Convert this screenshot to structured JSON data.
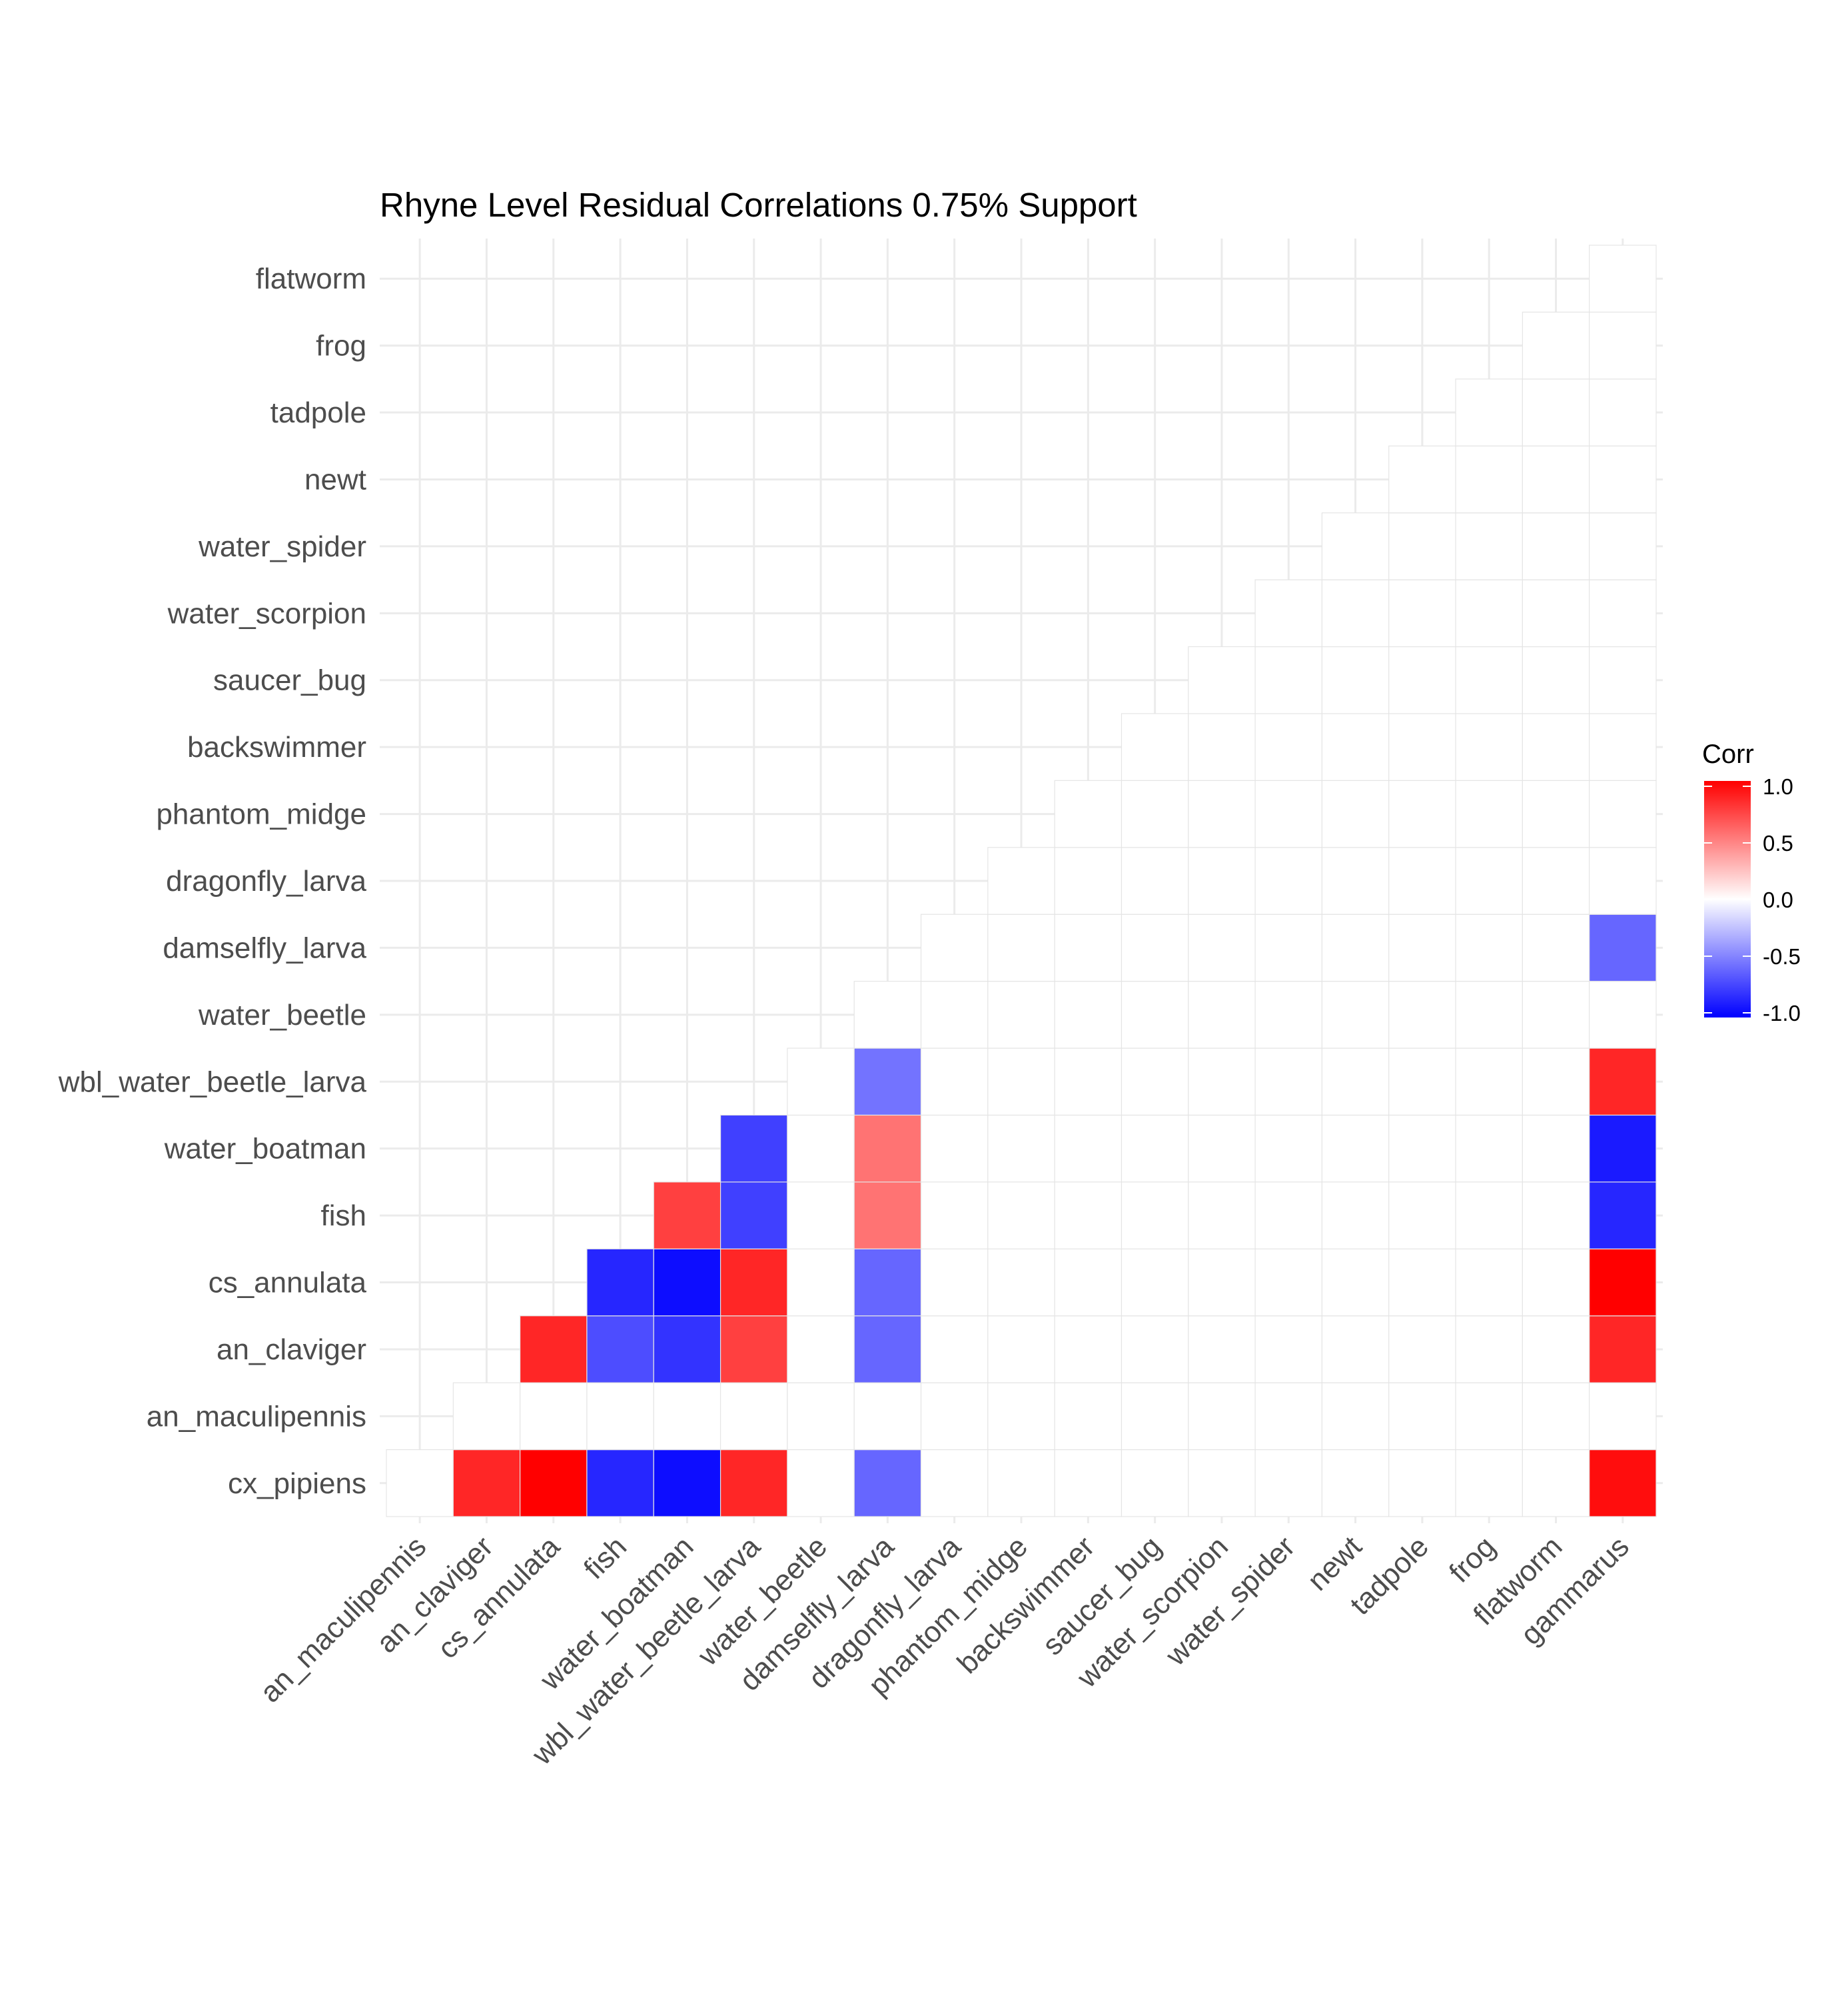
{
  "chart_data": {
    "type": "heatmap",
    "title": "Rhyne Level Residual Correlations 0.75% Support",
    "xlabel": "",
    "ylabel": "",
    "variables": [
      "an_maculipennis",
      "an_claviger",
      "cs_annulata",
      "fish",
      "water_boatman",
      "wbl_water_beetle_larva",
      "water_beetle",
      "damselfly_larva",
      "dragonfly_larva",
      "phantom_midge",
      "backswimmer",
      "saucer_bug",
      "water_scorpion",
      "water_spider",
      "newt",
      "tadpole",
      "frog",
      "flatworm",
      "gammarus"
    ],
    "x_categories": [
      "an_maculipennis",
      "an_claviger",
      "cs_annulata",
      "fish",
      "water_boatman",
      "wbl_water_beetle_larva",
      "water_beetle",
      "damselfly_larva",
      "dragonfly_larva",
      "phantom_midge",
      "backswimmer",
      "saucer_bug",
      "water_scorpion",
      "water_spider",
      "newt",
      "tadpole",
      "frog",
      "flatworm",
      "gammarus"
    ],
    "y_categories": [
      "cx_pipiens",
      "an_maculipennis",
      "an_claviger",
      "cs_annulata",
      "fish",
      "water_boatman",
      "wbl_water_beetle_larva",
      "water_beetle",
      "damselfly_larva",
      "dragonfly_larva",
      "phantom_midge",
      "backswimmer",
      "saucer_bug",
      "water_scorpion",
      "water_spider",
      "newt",
      "tadpole",
      "frog",
      "flatworm"
    ],
    "values": [
      [
        0,
        0.85,
        1.0,
        -0.85,
        -0.95,
        0.85,
        0,
        -0.6,
        0,
        0,
        0,
        0,
        0,
        0,
        0,
        0,
        0,
        0,
        0.95
      ],
      [
        null,
        0,
        0,
        0,
        0,
        0,
        0,
        0,
        0,
        0,
        0,
        0,
        0,
        0,
        0,
        0,
        0,
        0,
        0
      ],
      [
        null,
        null,
        0.85,
        -0.7,
        -0.8,
        0.75,
        0,
        -0.6,
        0,
        0,
        0,
        0,
        0,
        0,
        0,
        0,
        0,
        0,
        0.85
      ],
      [
        null,
        null,
        null,
        -0.85,
        -0.95,
        0.85,
        0,
        -0.6,
        0,
        0,
        0,
        0,
        0,
        0,
        0,
        0,
        0,
        0,
        1.0
      ],
      [
        null,
        null,
        null,
        null,
        0.75,
        -0.75,
        0,
        0.55,
        0,
        0,
        0,
        0,
        0,
        0,
        0,
        0,
        0,
        0,
        -0.85
      ],
      [
        null,
        null,
        null,
        null,
        null,
        -0.75,
        0,
        0.55,
        0,
        0,
        0,
        0,
        0,
        0,
        0,
        0,
        0,
        0,
        -0.9
      ],
      [
        null,
        null,
        null,
        null,
        null,
        null,
        0,
        -0.55,
        0,
        0,
        0,
        0,
        0,
        0,
        0,
        0,
        0,
        0,
        0.85
      ],
      [
        null,
        null,
        null,
        null,
        null,
        null,
        null,
        0,
        0,
        0,
        0,
        0,
        0,
        0,
        0,
        0,
        0,
        0,
        0
      ],
      [
        null,
        null,
        null,
        null,
        null,
        null,
        null,
        null,
        0,
        0,
        0,
        0,
        0,
        0,
        0,
        0,
        0,
        0,
        -0.6
      ],
      [
        null,
        null,
        null,
        null,
        null,
        null,
        null,
        null,
        null,
        0,
        0,
        0,
        0,
        0,
        0,
        0,
        0,
        0,
        0
      ],
      [
        null,
        null,
        null,
        null,
        null,
        null,
        null,
        null,
        null,
        null,
        0,
        0,
        0,
        0,
        0,
        0,
        0,
        0,
        0
      ],
      [
        null,
        null,
        null,
        null,
        null,
        null,
        null,
        null,
        null,
        null,
        null,
        0,
        0,
        0,
        0,
        0,
        0,
        0,
        0
      ],
      [
        null,
        null,
        null,
        null,
        null,
        null,
        null,
        null,
        null,
        null,
        null,
        null,
        0,
        0,
        0,
        0,
        0,
        0,
        0
      ],
      [
        null,
        null,
        null,
        null,
        null,
        null,
        null,
        null,
        null,
        null,
        null,
        null,
        null,
        0,
        0,
        0,
        0,
        0,
        0
      ],
      [
        null,
        null,
        null,
        null,
        null,
        null,
        null,
        null,
        null,
        null,
        null,
        null,
        null,
        null,
        0,
        0,
        0,
        0,
        0
      ],
      [
        null,
        null,
        null,
        null,
        null,
        null,
        null,
        null,
        null,
        null,
        null,
        null,
        null,
        null,
        null,
        0,
        0,
        0,
        0
      ],
      [
        null,
        null,
        null,
        null,
        null,
        null,
        null,
        null,
        null,
        null,
        null,
        null,
        null,
        null,
        null,
        null,
        0,
        0,
        0
      ],
      [
        null,
        null,
        null,
        null,
        null,
        null,
        null,
        null,
        null,
        null,
        null,
        null,
        null,
        null,
        null,
        null,
        null,
        0,
        0
      ],
      [
        null,
        null,
        null,
        null,
        null,
        null,
        null,
        null,
        null,
        null,
        null,
        null,
        null,
        null,
        null,
        null,
        null,
        null,
        0
      ]
    ],
    "color_scale": {
      "low": "#0000ff",
      "mid": "#ffffff",
      "high": "#ff0000",
      "limits": [
        -1.0,
        1.0
      ]
    },
    "legend": {
      "title": "Corr",
      "placement": "right",
      "breaks": [
        1.0,
        0.5,
        0.0,
        -0.5,
        -1.0
      ],
      "labels": [
        "1.0",
        "0.5",
        "0.0",
        "-0.5",
        "-1.0"
      ]
    },
    "grid": true
  }
}
